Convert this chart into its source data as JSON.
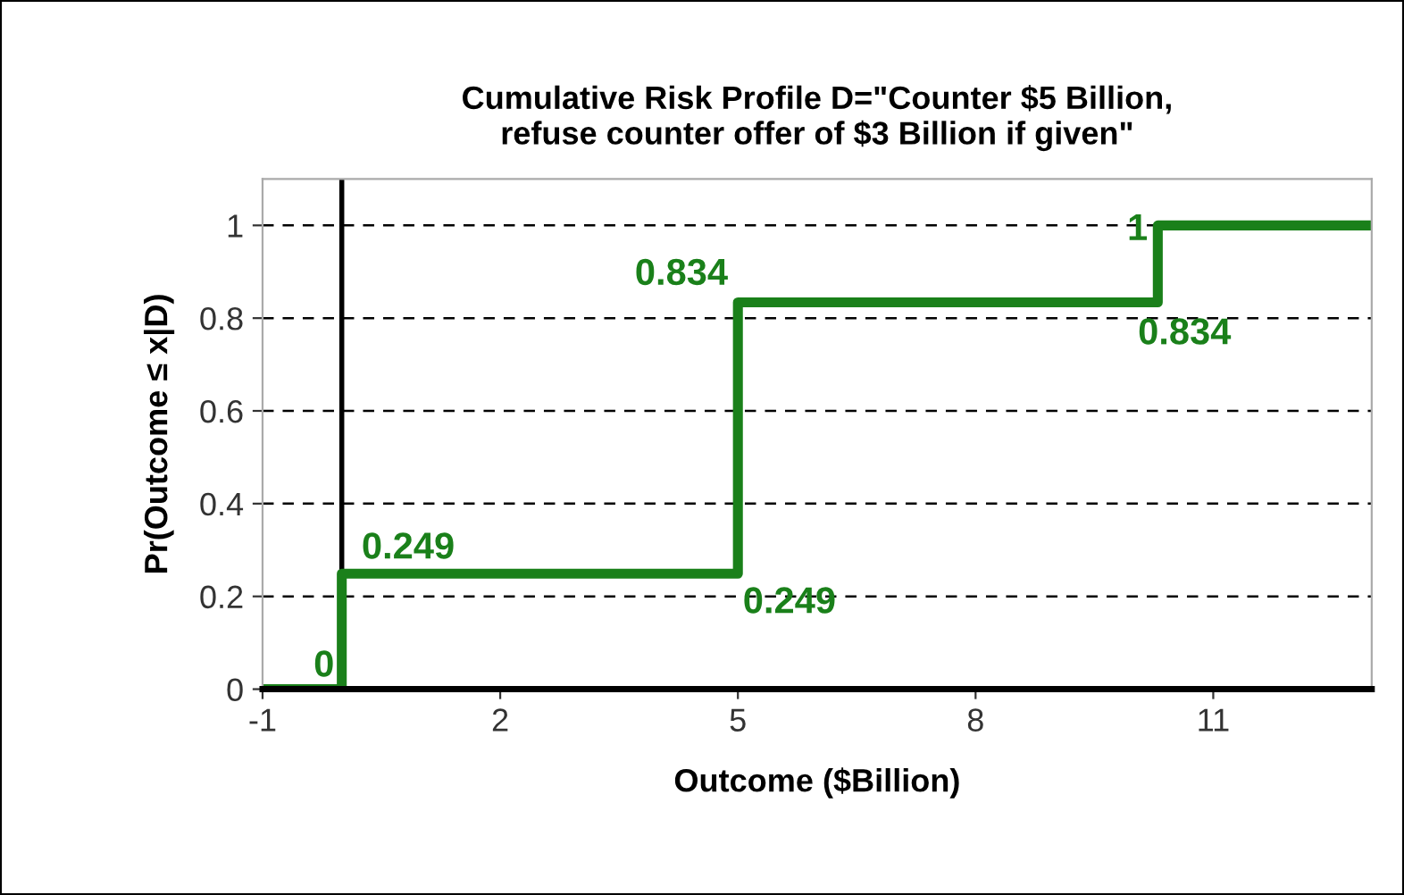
{
  "chart_data": {
    "type": "step",
    "title": "Cumulative Risk Profile D=\"Counter $5 Billion,\nrefuse counter offer of $3 Billion if given\"",
    "xlabel": "Outcome ($Billion)",
    "ylabel": "Pr(Outcome ≤ x|D)",
    "series": [
      {
        "color": "#1a801a",
        "x": [
          -1,
          0,
          5,
          10.3,
          13
        ],
        "values": [
          0,
          0.249,
          0.834,
          1,
          1
        ]
      }
    ],
    "xlim": [
      -1,
      13
    ],
    "xticks": [
      -1,
      2,
      5,
      8,
      11
    ],
    "ylim": [
      0,
      1.1
    ],
    "yticks": [
      0,
      0.2,
      0.4,
      0.6,
      0.8,
      1
    ],
    "grid": "y",
    "ref_lines": [
      {
        "axis": "x",
        "value": 0,
        "color": "#000000"
      }
    ],
    "annotations": [
      {
        "text": "0",
        "x": 0,
        "y": 0
      },
      {
        "text": "0.249",
        "x": 0,
        "y": 0.249
      },
      {
        "text": "0.249",
        "x": 5,
        "y": 0.249
      },
      {
        "text": "0.834",
        "x": 5,
        "y": 0.834
      },
      {
        "text": "0.834",
        "x": 10.3,
        "y": 0.834
      },
      {
        "text": "1",
        "x": 10.3,
        "y": 1
      }
    ]
  }
}
